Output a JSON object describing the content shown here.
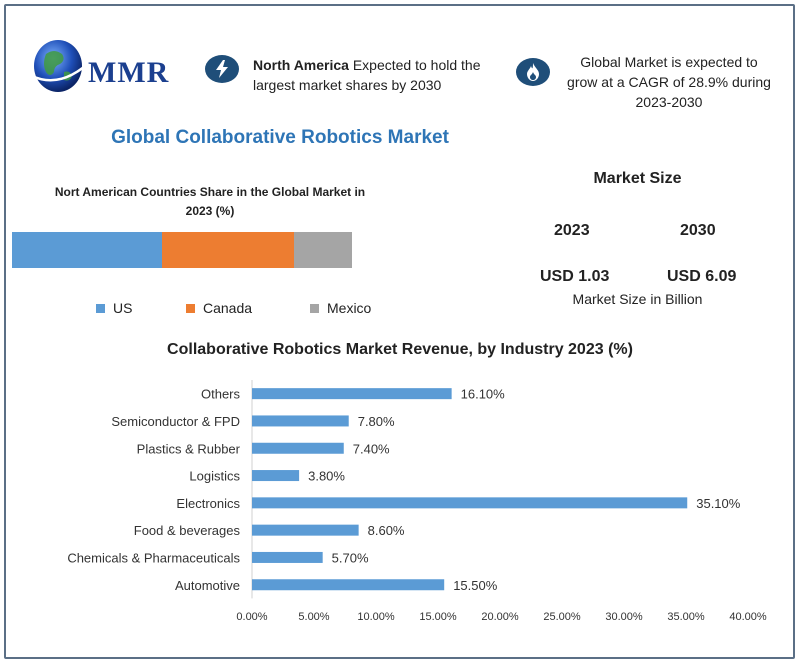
{
  "brand": {
    "logo_text": "MMR"
  },
  "header": {
    "info1_bold": "North America",
    "info1_rest": " Expected to hold the largest market shares by 2030",
    "info2": "Global Market is expected to grow at a CAGR of 28.9% during 2023-2030"
  },
  "main_title": "Global Collaborative  Robotics Market",
  "market_size": {
    "title": "Market Size",
    "year1": "2023",
    "year2": "2030",
    "value1": "USD 1.03",
    "value2": "USD 6.09",
    "note": "Market Size in Billion"
  },
  "colors": {
    "us": "#5b9bd5",
    "canada": "#ed7d31",
    "mexico": "#a5a5a5",
    "bar": "#5b9bd5",
    "title_blue": "#2e75b6",
    "badge": "#1f4e79"
  },
  "chart_data": [
    {
      "type": "bar",
      "orientation": "horizontal-stacked",
      "title": "Nort American Countries Share in the Global Market in 2023  (%)",
      "series": [
        {
          "name": "US",
          "values": [
            44
          ]
        },
        {
          "name": "Canada",
          "values": [
            39
          ]
        },
        {
          "name": "Mexico",
          "values": [
            17
          ]
        }
      ],
      "legend": "bottom"
    },
    {
      "type": "bar",
      "orientation": "horizontal",
      "title": "Collaborative Robotics Market Revenue, by Industry 2023 (%)",
      "categories": [
        "Others",
        "Semiconductor & FPD",
        "Plastics & Rubber",
        "Logistics",
        "Electronics",
        "Food & beverages",
        "Chemicals & Pharmaceuticals",
        "Automotive"
      ],
      "values": [
        16.1,
        7.8,
        7.4,
        3.8,
        35.1,
        8.6,
        5.7,
        15.5
      ],
      "value_labels": [
        "16.10%",
        "7.80%",
        "7.40%",
        "3.80%",
        "35.10%",
        "8.60%",
        "5.70%",
        "15.50%"
      ],
      "xlim": [
        0,
        40
      ],
      "xticks": [
        "0.00%",
        "5.00%",
        "10.00%",
        "15.00%",
        "20.00%",
        "25.00%",
        "30.00%",
        "35.00%",
        "40.00%"
      ],
      "grid": false
    }
  ]
}
